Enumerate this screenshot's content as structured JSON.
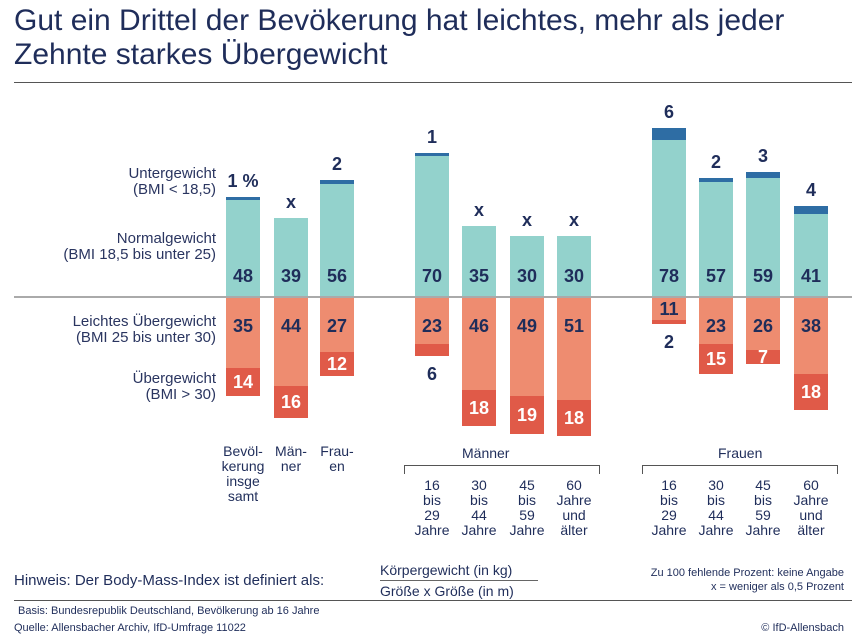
{
  "title": "Gut ein Drittel der Bevökerung hat leichtes, mehr als jeder Zehnte starkes Übergewicht",
  "legend": [
    {
      "label": "Untergewicht",
      "sub": "(BMI < 18,5)",
      "color": "#2e6da4"
    },
    {
      "label": "Normalgewicht",
      "sub": "(BMI 18,5 bis unter 25)",
      "color": "#93d2cc"
    },
    {
      "label": "Leichtes Übergewicht",
      "sub": "(BMI 25 bis unter 30)",
      "color": "#ee8c70"
    },
    {
      "label": "Übergewicht",
      "sub": "(BMI > 30)",
      "color": "#e05a48"
    }
  ],
  "groups": [
    {
      "label": "",
      "categories": [
        "Bevöl-\nkerung\ninsge\nsamt",
        "Män-\nner",
        "Frau-\nen"
      ]
    },
    {
      "label": "Männer",
      "categories": [
        "16\nbis\n29\nJahre",
        "30\nbis\n44\nJahre",
        "45\nbis\n59\nJahre",
        "60\nJahre\nund\nälter"
      ]
    },
    {
      "label": "Frauen",
      "categories": [
        "16\nbis\n29\nJahre",
        "30\nbis\n44\nJahre",
        "45\nbis\n59\nJahre",
        "60\nJahre\nund\nälter"
      ]
    }
  ],
  "chart_data": {
    "type": "bar",
    "stacked": "diverging",
    "unit": "%",
    "categories": [
      "Bevölkerung insgesamt",
      "Männer",
      "Frauen",
      "Männer 16-29",
      "Männer 30-44",
      "Männer 45-59",
      "Männer 60+",
      "Frauen 16-29",
      "Frauen 30-44",
      "Frauen 45-59",
      "Frauen 60+"
    ],
    "series": [
      {
        "name": "Untergewicht",
        "values": [
          1,
          0.3,
          2,
          1,
          0.3,
          0.3,
          0.3,
          6,
          2,
          3,
          4
        ],
        "labels": [
          "1 %",
          "x",
          "2",
          "1",
          "x",
          "x",
          "x",
          "6",
          "2",
          "3",
          "4"
        ]
      },
      {
        "name": "Normalgewicht",
        "values": [
          48,
          39,
          56,
          70,
          35,
          30,
          30,
          78,
          57,
          59,
          41
        ]
      },
      {
        "name": "Leichtes Übergewicht",
        "values": [
          35,
          44,
          27,
          23,
          46,
          49,
          51,
          11,
          23,
          26,
          38
        ]
      },
      {
        "name": "Übergewicht",
        "values": [
          14,
          16,
          12,
          6,
          18,
          19,
          18,
          2,
          15,
          7,
          18
        ]
      }
    ]
  },
  "footer": {
    "hint": "Hinweis: Der Body-Mass-Index ist definiert als:",
    "numerator": "Körpergewicht (in kg)",
    "denominator": "Größe x Größe (in m)",
    "note1": "Zu 100 fehlende Prozent: keine Angabe",
    "note2": "x = weniger als 0,5 Prozent",
    "basis": "Basis: Bundesrepublik Deutschland, Bevölkerung ab 16 Jahre",
    "source": "Quelle: Allensbacher Archiv, IfD-Umfrage 11022",
    "copyright": "© IfD-Allensbach"
  }
}
